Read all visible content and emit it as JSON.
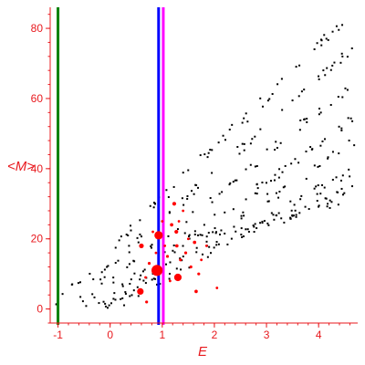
{
  "chart_data": {
    "type": "scatter",
    "title": "",
    "xlabel": "E",
    "ylabel": "<M>",
    "xlim": [
      -1.15,
      4.75
    ],
    "ylim": [
      -4,
      86
    ],
    "x_ticks": [
      -1,
      0,
      1,
      2,
      3,
      4
    ],
    "y_ticks": [
      0,
      20,
      40,
      60,
      80
    ],
    "grid": false,
    "legend": "none",
    "axis_color": "#e8191e",
    "vertical_lines": [
      {
        "x": -1.0,
        "color": "#008000"
      },
      {
        "x": 0.93,
        "color": "#0000ff"
      },
      {
        "x": 1.02,
        "color": "#ff00ff"
      }
    ],
    "background_series": {
      "name": "",
      "color": "#000000",
      "bands": [
        {
          "x0": -1.05,
          "y0": 2,
          "x1": 4.7,
          "y1": 85,
          "n": 64
        },
        {
          "x0": -0.75,
          "y0": 2,
          "x1": 4.7,
          "y1": 75,
          "n": 56
        },
        {
          "x0": -0.55,
          "y0": 1,
          "x1": 4.7,
          "y1": 65,
          "n": 50
        },
        {
          "x0": -0.35,
          "y0": 0,
          "x1": 4.7,
          "y1": 55,
          "n": 54
        },
        {
          "x0": -0.1,
          "y0": 0,
          "x1": 4.7,
          "y1": 48,
          "n": 50
        },
        {
          "x0": 0.2,
          "y0": 2,
          "x1": 4.7,
          "y1": 40,
          "n": 46
        },
        {
          "x0": 0.5,
          "y0": 8,
          "x1": 4.7,
          "y1": 35,
          "n": 40
        },
        {
          "x0": 1.2,
          "y0": 20,
          "x1": 4.7,
          "y1": 30,
          "n": 30
        }
      ]
    },
    "highlight_series": {
      "name": "",
      "color": "#ff0000",
      "points": [
        {
          "x": 0.9,
          "y": 11,
          "size": 11
        },
        {
          "x": 0.93,
          "y": 21,
          "size": 8
        },
        {
          "x": 1.3,
          "y": 9,
          "size": 7
        },
        {
          "x": 0.58,
          "y": 5,
          "size": 6
        },
        {
          "x": 0.6,
          "y": 18,
          "size": 4
        },
        {
          "x": 1.27,
          "y": 22,
          "size": 3
        },
        {
          "x": 1.23,
          "y": 30,
          "size": 3
        },
        {
          "x": 1.18,
          "y": 24,
          "size": 2.5
        },
        {
          "x": 1.28,
          "y": 18,
          "size": 2.5
        },
        {
          "x": 1.62,
          "y": 19,
          "size": 2.5
        },
        {
          "x": 1.65,
          "y": 5,
          "size": 2.5
        },
        {
          "x": 1.35,
          "y": 14,
          "size": 2
        },
        {
          "x": 1.45,
          "y": 16,
          "size": 2
        },
        {
          "x": 1.1,
          "y": 15,
          "size": 2
        },
        {
          "x": 0.75,
          "y": 13,
          "size": 2
        },
        {
          "x": 0.7,
          "y": 2,
          "size": 2
        },
        {
          "x": 1.55,
          "y": 12,
          "size": 2
        },
        {
          "x": 1.7,
          "y": 10,
          "size": 2
        },
        {
          "x": 1.4,
          "y": 28,
          "size": 1.6
        },
        {
          "x": 0.82,
          "y": 22,
          "size": 1.6
        },
        {
          "x": 0.88,
          "y": 16,
          "size": 1.6
        },
        {
          "x": 1.05,
          "y": 18,
          "size": 1.6
        },
        {
          "x": 1.15,
          "y": 8,
          "size": 1.6
        },
        {
          "x": 1.5,
          "y": 20,
          "size": 1.6
        },
        {
          "x": 1.75,
          "y": 14,
          "size": 1.6
        },
        {
          "x": 2.05,
          "y": 6,
          "size": 1.6
        },
        {
          "x": 1.32,
          "y": 25,
          "size": 1.6
        },
        {
          "x": 0.68,
          "y": 9,
          "size": 1.6
        },
        {
          "x": 1.85,
          "y": 18,
          "size": 1.6
        },
        {
          "x": 1.0,
          "y": 25,
          "size": 1.6
        }
      ]
    }
  }
}
